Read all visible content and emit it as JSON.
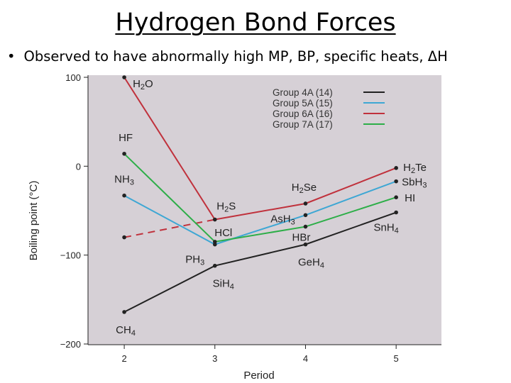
{
  "slide": {
    "title": "Hydrogen Bond Forces",
    "bullet": "Observed to have abnormally high MP, BP, specific heats, ΔH"
  },
  "chart_data": {
    "type": "line",
    "title": "",
    "xlabel": "Period",
    "ylabel": "Boiling point (°C)",
    "xlim": [
      1.6,
      5.5
    ],
    "ylim": [
      -200,
      100
    ],
    "x_ticks": [
      "2",
      "3",
      "4",
      "5"
    ],
    "y_ticks": [
      "100",
      "0",
      "−100",
      "−200"
    ],
    "grid": false,
    "legend_position": "top-right",
    "background": "#d6d0d6",
    "series": [
      {
        "name": "Group 4A (14)",
        "color": "#222222",
        "points": [
          {
            "x": 2,
            "y": -164,
            "label": "CH4"
          },
          {
            "x": 3,
            "y": -112,
            "label": "SiH4"
          },
          {
            "x": 4,
            "y": -88,
            "label": "GeH4"
          },
          {
            "x": 5,
            "y": -52,
            "label": "SnH4"
          }
        ]
      },
      {
        "name": "Group 5A (15)",
        "color": "#3ea7d4",
        "points": [
          {
            "x": 2,
            "y": -33,
            "label": "NH3"
          },
          {
            "x": 3,
            "y": -88,
            "label": "PH3"
          },
          {
            "x": 4,
            "y": -55,
            "label": "AsH3"
          },
          {
            "x": 5,
            "y": -17,
            "label": "SbH3"
          }
        ]
      },
      {
        "name": "Group 6A (16)",
        "color": "#c0313c",
        "dashed_first_segment": true,
        "dashed_start": {
          "x": 2,
          "y": -80
        },
        "points": [
          {
            "x": 2,
            "y": 100,
            "label": "H2O"
          },
          {
            "x": 3,
            "y": -60,
            "label": "H2S"
          },
          {
            "x": 4,
            "y": -42,
            "label": "H2Se"
          },
          {
            "x": 5,
            "y": -2,
            "label": "H2Te"
          }
        ]
      },
      {
        "name": "Group 7A (17)",
        "color": "#2dae48",
        "points": [
          {
            "x": 2,
            "y": 14,
            "label": "HF"
          },
          {
            "x": 3,
            "y": -85,
            "label": "HCl"
          },
          {
            "x": 4,
            "y": -68,
            "label": "HBr"
          },
          {
            "x": 5,
            "y": -35,
            "label": "HI"
          }
        ]
      }
    ]
  }
}
